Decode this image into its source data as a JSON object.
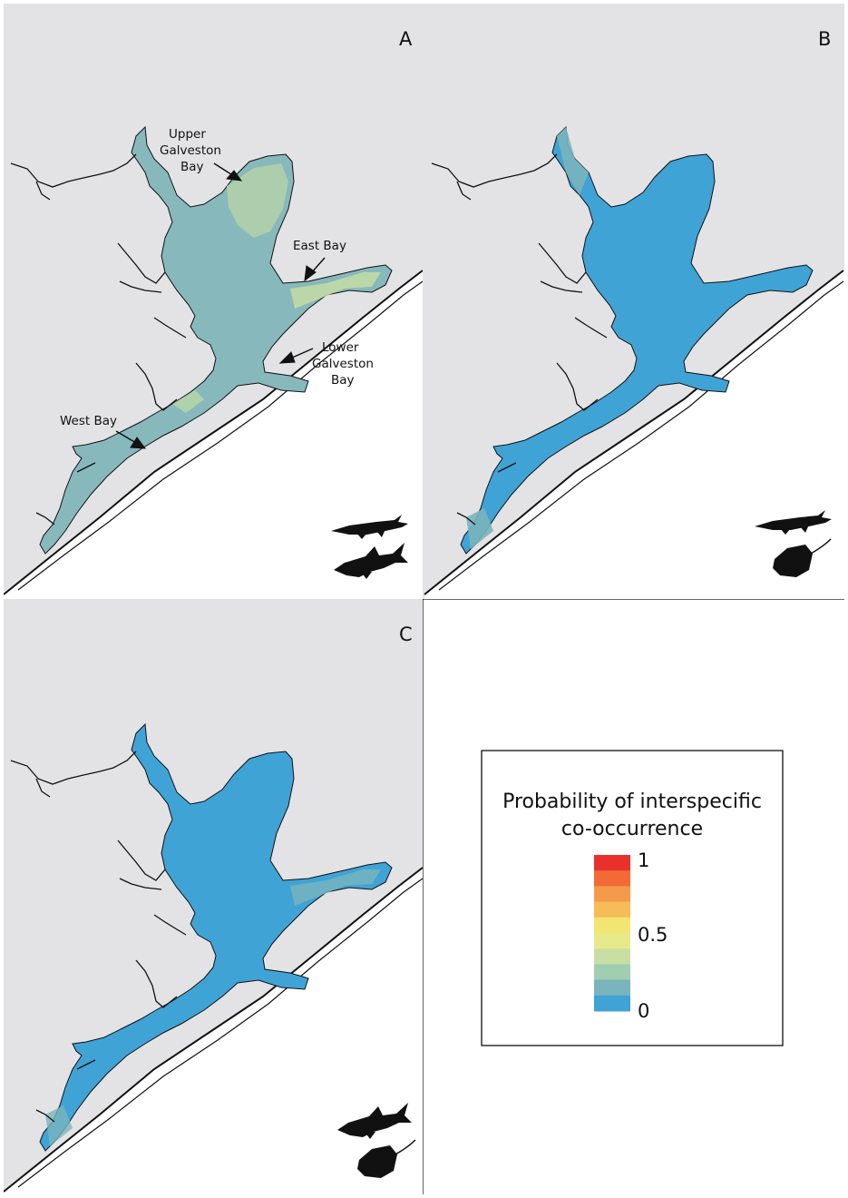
{
  "panels": [
    {
      "letter": "A",
      "species": [
        "alligator gar",
        "bull shark"
      ]
    },
    {
      "letter": "B",
      "species": [
        "alligator gar",
        "stingray"
      ]
    },
    {
      "letter": "C",
      "species": [
        "bull shark",
        "stingray"
      ]
    }
  ],
  "place_labels": {
    "upper_galveston_bay": [
      "Upper",
      "Galveston",
      "Bay"
    ],
    "east_bay": [
      "East Bay"
    ],
    "lower_galveston_bay": [
      "Lower",
      "Galveston",
      "Bay"
    ],
    "west_bay": [
      "West Bay"
    ]
  },
  "legend": {
    "title_line1": "Probability of interspecific",
    "title_line2": "co-occurrence",
    "tick_max": "1",
    "tick_mid": "0.5",
    "tick_min": "0",
    "colors_top_to_bottom": [
      "#e8312b",
      "#f26b36",
      "#f59a4b",
      "#f7bb5a",
      "#f3e572",
      "#e8ea8a",
      "#c8dea3",
      "#a1cdb0",
      "#7ab4bd",
      "#3fa3d6"
    ]
  },
  "colors": {
    "land": "#e3e3e5",
    "sea": "#ffffff",
    "water_panel_A": "#87b9bc",
    "water_high_patches": "#c7dda3",
    "water_low": "#3fa3d6",
    "coast_line": "#111111"
  },
  "icon_names": [
    "alligator-gar-icon",
    "bull-shark-icon",
    "stingray-icon"
  ]
}
